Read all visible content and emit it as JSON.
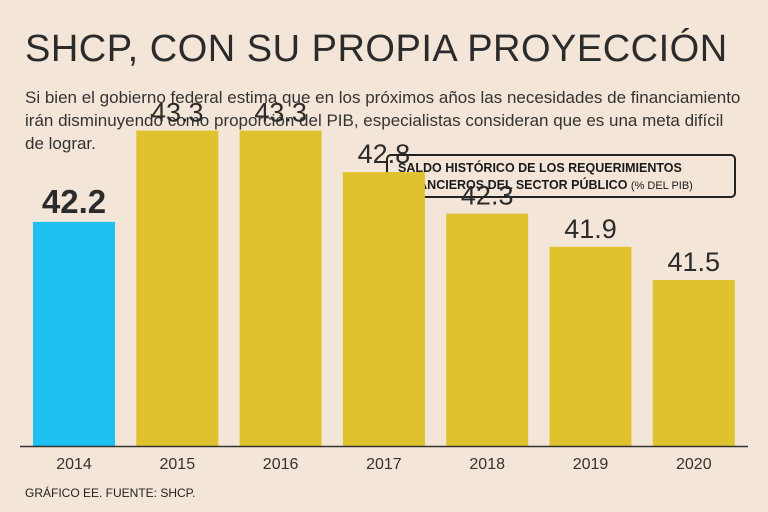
{
  "header": {
    "title": "SHCP, CON SU PROPIA PROYECCIÓN",
    "subtitle": "Si bien el gobierno federal estima que en los próximos años las necesidades de financiamiento irán disminuyendo como proporción del PIB, especialistas consideran que es una meta difícil de lograr."
  },
  "legend": {
    "line1": "SALDO HISTÓRICO DE LOS REQUERIMIENTOS",
    "line2": "FINANCIEROS DEL SECTOR PÚBLICO",
    "unit": "(% DEL PIB)"
  },
  "footer": {
    "source": "GRÁFICO EE. FUENTE: SHCP."
  },
  "colors": {
    "highlight": "#1fc0f2",
    "bar": "#e0c22e",
    "axis": "#333333",
    "background": "#f3e5d7"
  },
  "chart_data": {
    "type": "bar",
    "categories": [
      "2014",
      "2015",
      "2016",
      "2017",
      "2018",
      "2019",
      "2020"
    ],
    "values": [
      42.2,
      43.3,
      43.3,
      42.8,
      42.3,
      41.9,
      41.5
    ],
    "value_labels": [
      "42.2",
      "43.3",
      "43.3",
      "42.8",
      "42.3",
      "41.9",
      "41.5"
    ],
    "highlight_index": 0,
    "ylim": [
      39.5,
      43.5
    ],
    "grid": false
  }
}
